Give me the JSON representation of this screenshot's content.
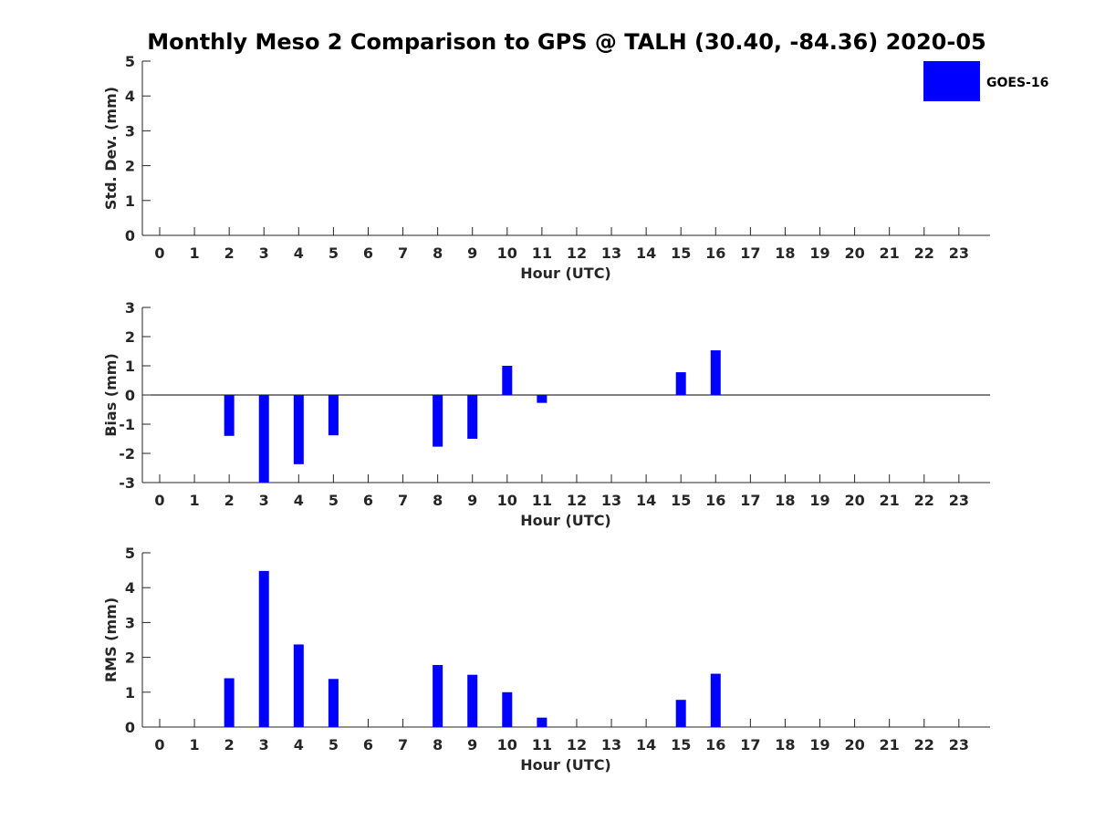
{
  "colors": {
    "bar": "#0000ff",
    "axis": "#262626",
    "background": "#ffffff"
  },
  "chart_data": {
    "type": "bar",
    "title": "Monthly Meso 2 Comparison to GPS @ TALH (30.40, -84.36) 2020-05",
    "legend": {
      "entries": [
        "GOES-16"
      ],
      "placement": "top-right",
      "color": "#0000ff"
    },
    "categories": [
      "0",
      "1",
      "2",
      "3",
      "4",
      "5",
      "6",
      "7",
      "8",
      "9",
      "10",
      "11",
      "12",
      "13",
      "14",
      "15",
      "16",
      "17",
      "18",
      "19",
      "20",
      "21",
      "22",
      "23"
    ],
    "panels": [
      {
        "id": "std",
        "ylabel": "Std. Dev. (mm)",
        "xlabel": "Hour (UTC)",
        "ylim": [
          0,
          5
        ],
        "yticks": [
          "0",
          "1",
          "2",
          "3",
          "4",
          "5"
        ],
        "values": [
          null,
          null,
          null,
          null,
          null,
          null,
          null,
          null,
          null,
          null,
          null,
          null,
          null,
          null,
          null,
          null,
          null,
          null,
          null,
          null,
          null,
          null,
          null,
          null
        ],
        "grid": false
      },
      {
        "id": "bias",
        "ylabel": "Bias (mm)",
        "xlabel": "Hour (UTC)",
        "ylim": [
          -3,
          3
        ],
        "yticks": [
          "-3",
          "-2",
          "-1",
          "0",
          "1",
          "2",
          "3"
        ],
        "values": [
          null,
          null,
          -1.4,
          -3.0,
          -2.37,
          -1.38,
          null,
          null,
          -1.77,
          -1.5,
          1.0,
          -0.27,
          null,
          null,
          null,
          0.78,
          1.53,
          null,
          null,
          null,
          null,
          null,
          null,
          null
        ],
        "zero_line": true,
        "grid": false
      },
      {
        "id": "rms",
        "ylabel": "RMS (mm)",
        "xlabel": "Hour (UTC)",
        "ylim": [
          0,
          5
        ],
        "yticks": [
          "0",
          "1",
          "2",
          "3",
          "4",
          "5"
        ],
        "values": [
          null,
          null,
          1.4,
          4.48,
          2.37,
          1.38,
          null,
          null,
          1.78,
          1.5,
          1.0,
          0.27,
          null,
          null,
          null,
          0.78,
          1.53,
          null,
          null,
          null,
          null,
          null,
          null,
          null
        ],
        "grid": false
      }
    ]
  }
}
